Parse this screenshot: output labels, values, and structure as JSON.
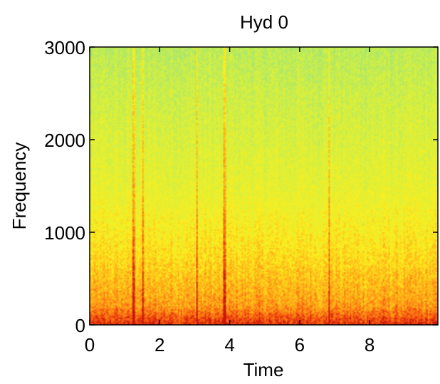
{
  "chart_data": {
    "type": "heatmap",
    "title": "Hyd 0",
    "xlabel": "Time",
    "ylabel": "Frequency",
    "xlim": [
      0,
      9.95
    ],
    "ylim": [
      0,
      3000
    ],
    "x_ticks": [
      0,
      2,
      4,
      6,
      8
    ],
    "x_tick_labels": [
      "0",
      "2",
      "4",
      "6",
      "8"
    ],
    "y_ticks": [
      0,
      1000,
      2000,
      3000
    ],
    "y_tick_labels": [
      "0",
      "1000",
      "2000",
      "3000"
    ],
    "grid": false,
    "colormap": "jet-like: lower power green/cyan, higher power yellow to orange to red",
    "colors": {
      "low_power": "#9ce37a",
      "mid_power": "#e5f236",
      "high_power": "#ff9a18",
      "peak_power": "#e01e0a"
    },
    "description_values": {
      "power_profile": [
        {
          "frequency": 0,
          "level": "very high"
        },
        {
          "frequency": 200,
          "level": "high"
        },
        {
          "frequency": 800,
          "level": "medium-high"
        },
        {
          "frequency": 1500,
          "level": "medium"
        },
        {
          "frequency": 2500,
          "level": "medium-low"
        },
        {
          "frequency": 3000,
          "level": "low"
        }
      ],
      "transient_times": [
        1.25,
        1.5,
        3.05,
        3.85,
        6.85
      ]
    }
  }
}
